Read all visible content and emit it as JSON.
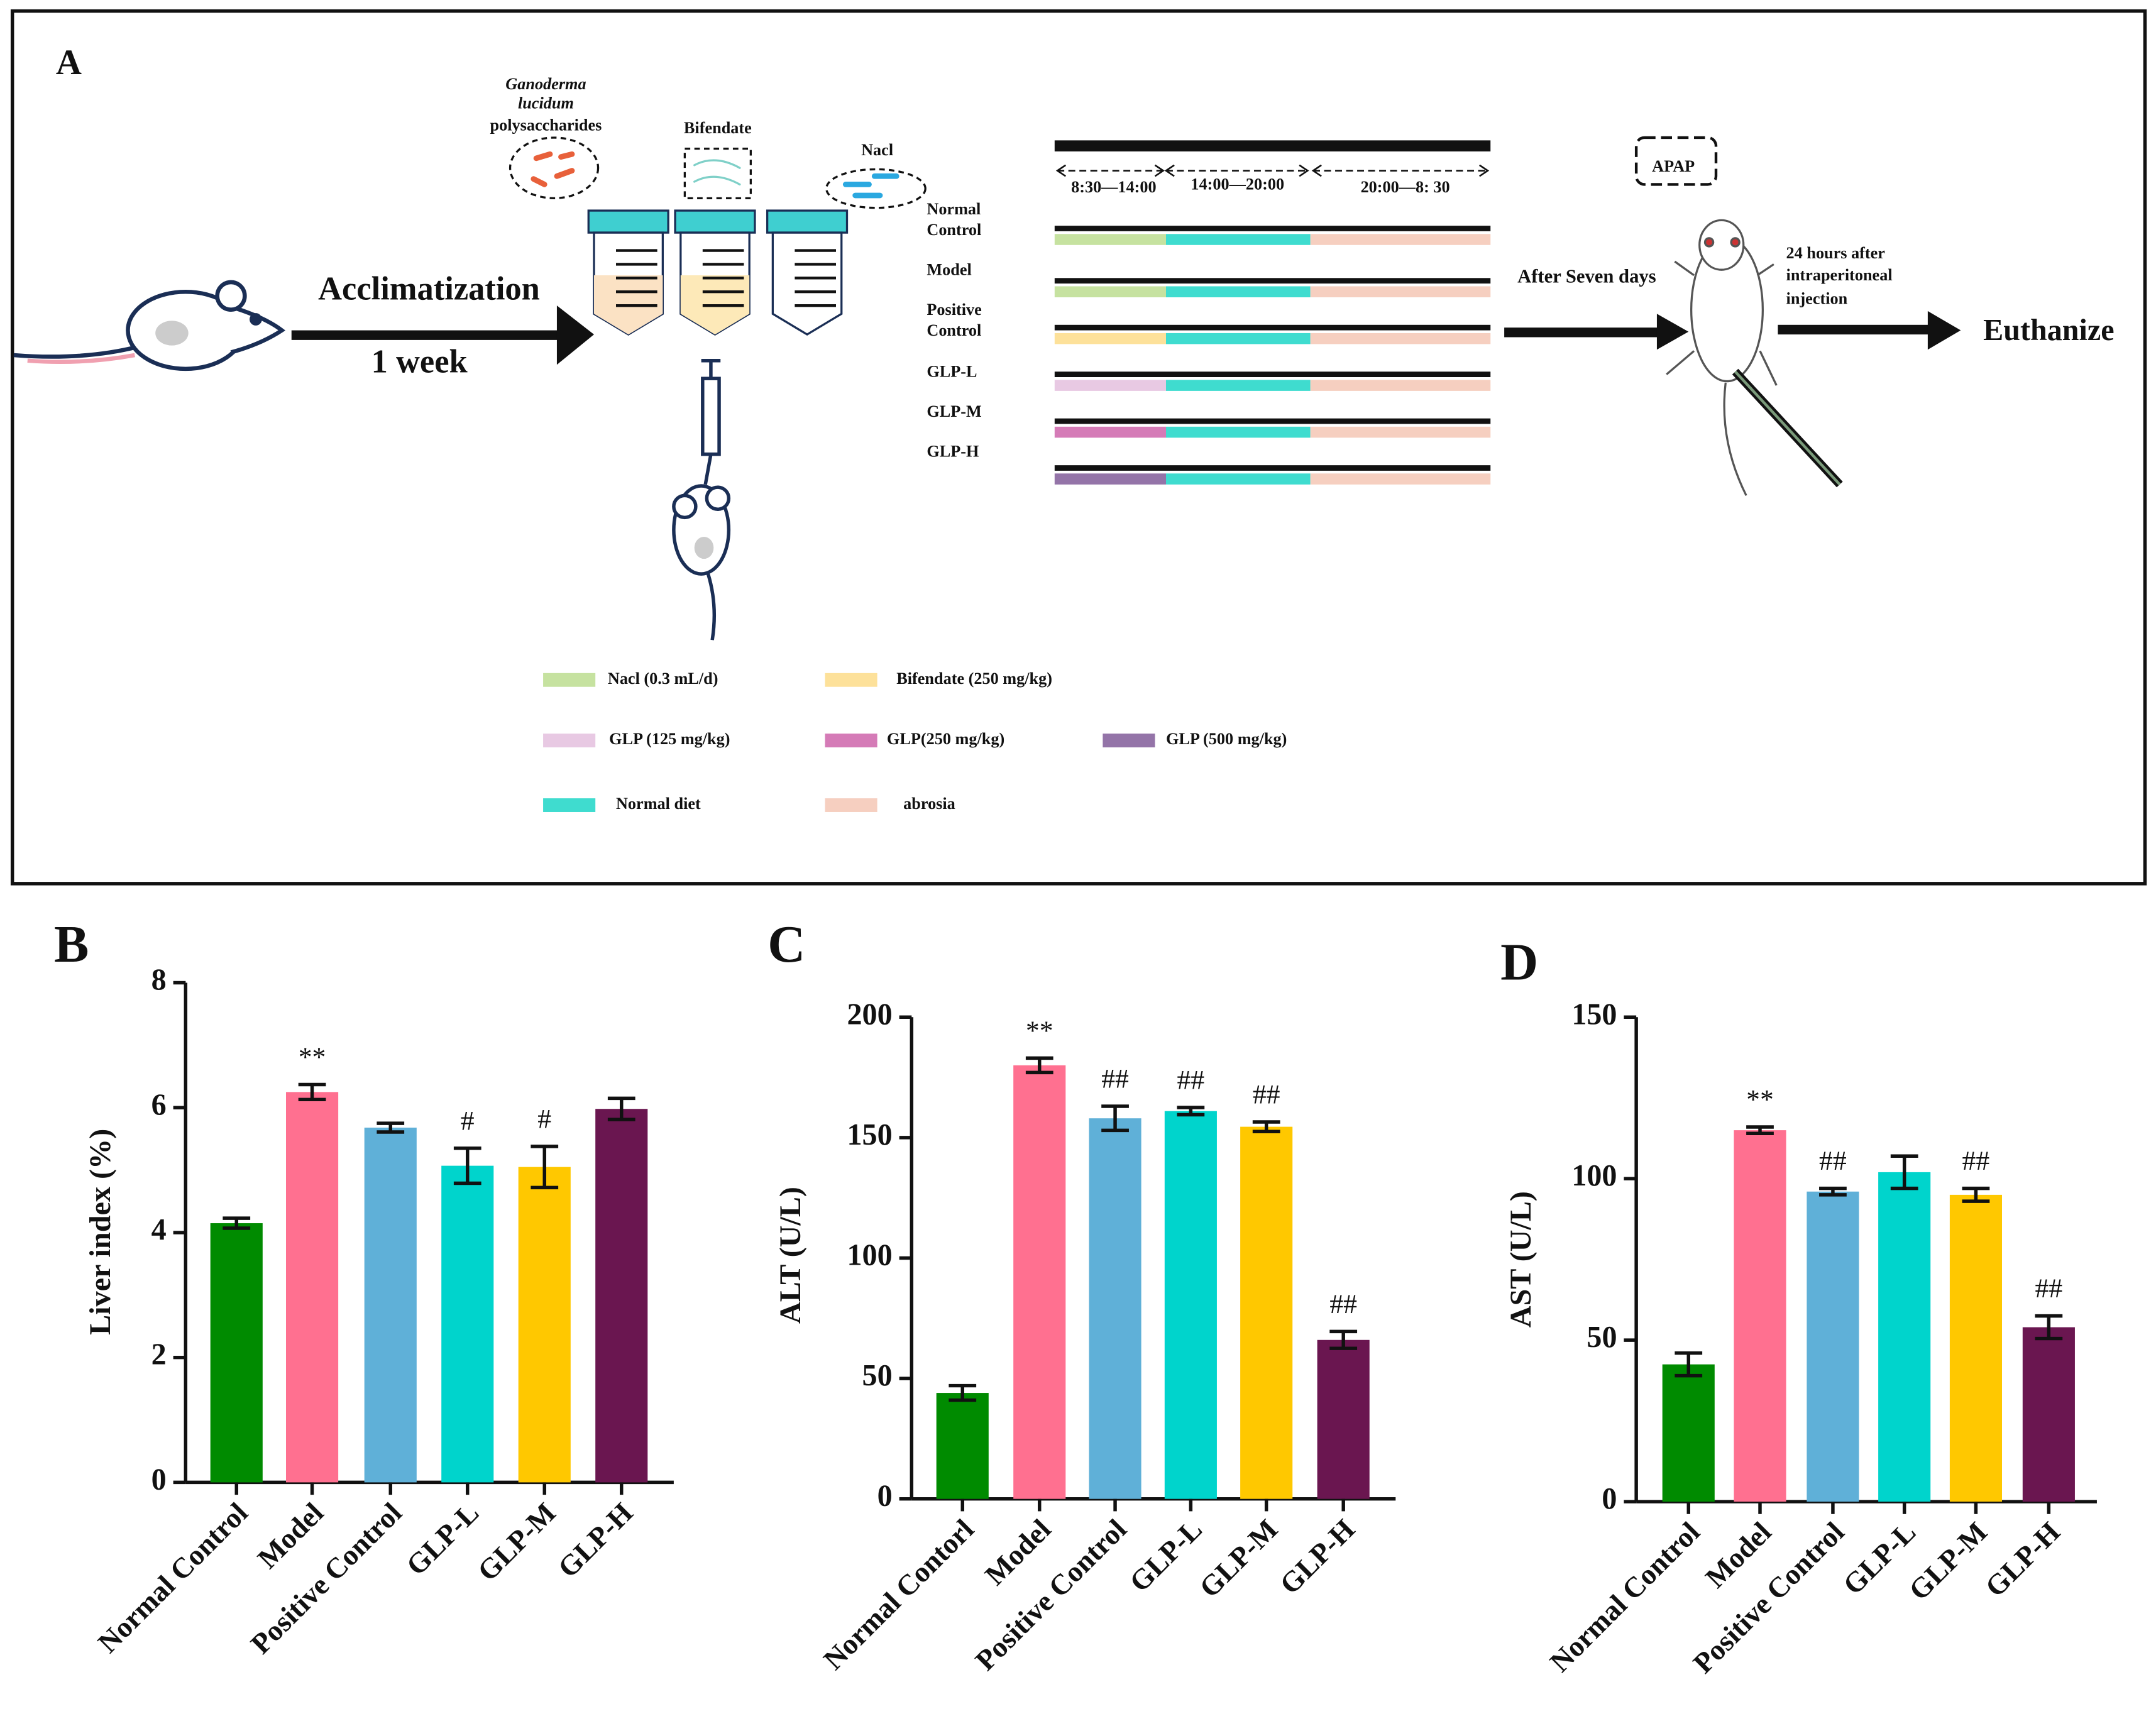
{
  "diagram": {
    "panel": "A",
    "acclimatization": "Acclimatization",
    "duration": "1 week",
    "reagents": {
      "glp": [
        "Ganoderma",
        "lucidum",
        "polysaccharides"
      ],
      "bifendate": "Bifendate",
      "nacl": "Nacl"
    },
    "times": [
      "8:30—14:00",
      "14:00—20:00",
      "20:00—8:  30"
    ],
    "groups": [
      {
        "label": [
          "Normal",
          "Control"
        ],
        "color": "#c6e2a0"
      },
      {
        "label": [
          "Model"
        ],
        "color": "#c6e2a0"
      },
      {
        "label": [
          "Positive",
          "Control"
        ],
        "color": "#fde19a"
      },
      {
        "label": [
          "GLP-L"
        ],
        "color": "#e8c9e3"
      },
      {
        "label": [
          "GLP-M"
        ],
        "color": "#d57bb7"
      },
      {
        "label": [
          "GLP-H"
        ],
        "color": "#9474a8"
      }
    ],
    "after": "After Seven days",
    "apap": "APAP",
    "injection": [
      "24 hours after",
      "intraperitoneal",
      "injection"
    ],
    "end": "Euthanize",
    "legend": [
      {
        "label": "Nacl (0.3 mL/d)",
        "color": "#c6e2a0"
      },
      {
        "label": "Bifendate (250 mg/kg)",
        "color": "#fde19a"
      },
      {
        "label": "GLP (125 mg/kg)",
        "color": "#e8c9e3"
      },
      {
        "label": "GLP(250 mg/kg)",
        "color": "#d57bb7"
      },
      {
        "label": "GLP (500 mg/kg)",
        "color": "#9474a8"
      },
      {
        "label": "Normal diet",
        "color": "#3fdccf"
      },
      {
        "label": "abrosia",
        "color": "#f6cfc0"
      }
    ]
  },
  "chart_data": [
    {
      "type": "bar",
      "panel": "B",
      "ylabel": "Liver index (%)",
      "categories": [
        "Normal Control",
        "Model",
        "Positive Control",
        "GLP-L",
        "GLP-M",
        "GLP-H"
      ],
      "values": [
        4.15,
        6.25,
        5.68,
        5.07,
        5.05,
        5.98
      ],
      "errors": [
        0.08,
        0.12,
        0.07,
        0.28,
        0.33,
        0.17
      ],
      "annotations": [
        null,
        "**",
        null,
        "#",
        "#",
        null
      ],
      "colors": [
        "#008b00",
        "#ff7090",
        "#5fb0d8",
        "#00d4cc",
        "#ffc800",
        "#6a1650"
      ],
      "ylim": [
        0,
        8
      ],
      "yticks": [
        0,
        2,
        4,
        6,
        8
      ]
    },
    {
      "type": "bar",
      "panel": "C",
      "ylabel": "ALT (U/L)",
      "categories": [
        "Normal Contorl",
        "Model",
        "Positive Control",
        "GLP-L",
        "GLP-M",
        "GLP-H"
      ],
      "values": [
        44,
        180,
        158,
        161,
        154.5,
        66
      ],
      "errors": [
        3,
        3,
        5,
        1.5,
        2,
        3.5
      ],
      "annotations": [
        null,
        "**",
        "##",
        "##",
        "##",
        "##"
      ],
      "colors": [
        "#008b00",
        "#ff7090",
        "#5fb0d8",
        "#00d4cc",
        "#ffc800",
        "#6a1650"
      ],
      "ylim": [
        0,
        200
      ],
      "yticks": [
        0,
        50,
        100,
        150,
        200
      ]
    },
    {
      "type": "bar",
      "panel": "D",
      "ylabel": "AST (U/L)",
      "categories": [
        "Normal Control",
        "Model",
        "Positive Control",
        "GLP-L",
        "GLP-M",
        "GLP-H"
      ],
      "values": [
        42.5,
        115,
        96,
        102,
        95,
        54
      ],
      "errors": [
        3.5,
        1,
        1,
        5,
        2,
        3.5
      ],
      "annotations": [
        null,
        "**",
        "##",
        null,
        "##",
        "##"
      ],
      "colors": [
        "#008b00",
        "#ff7090",
        "#5fb0d8",
        "#00d4cc",
        "#ffc800",
        "#6a1650"
      ],
      "ylim": [
        0,
        150
      ],
      "yticks": [
        0,
        50,
        100,
        150
      ]
    }
  ]
}
